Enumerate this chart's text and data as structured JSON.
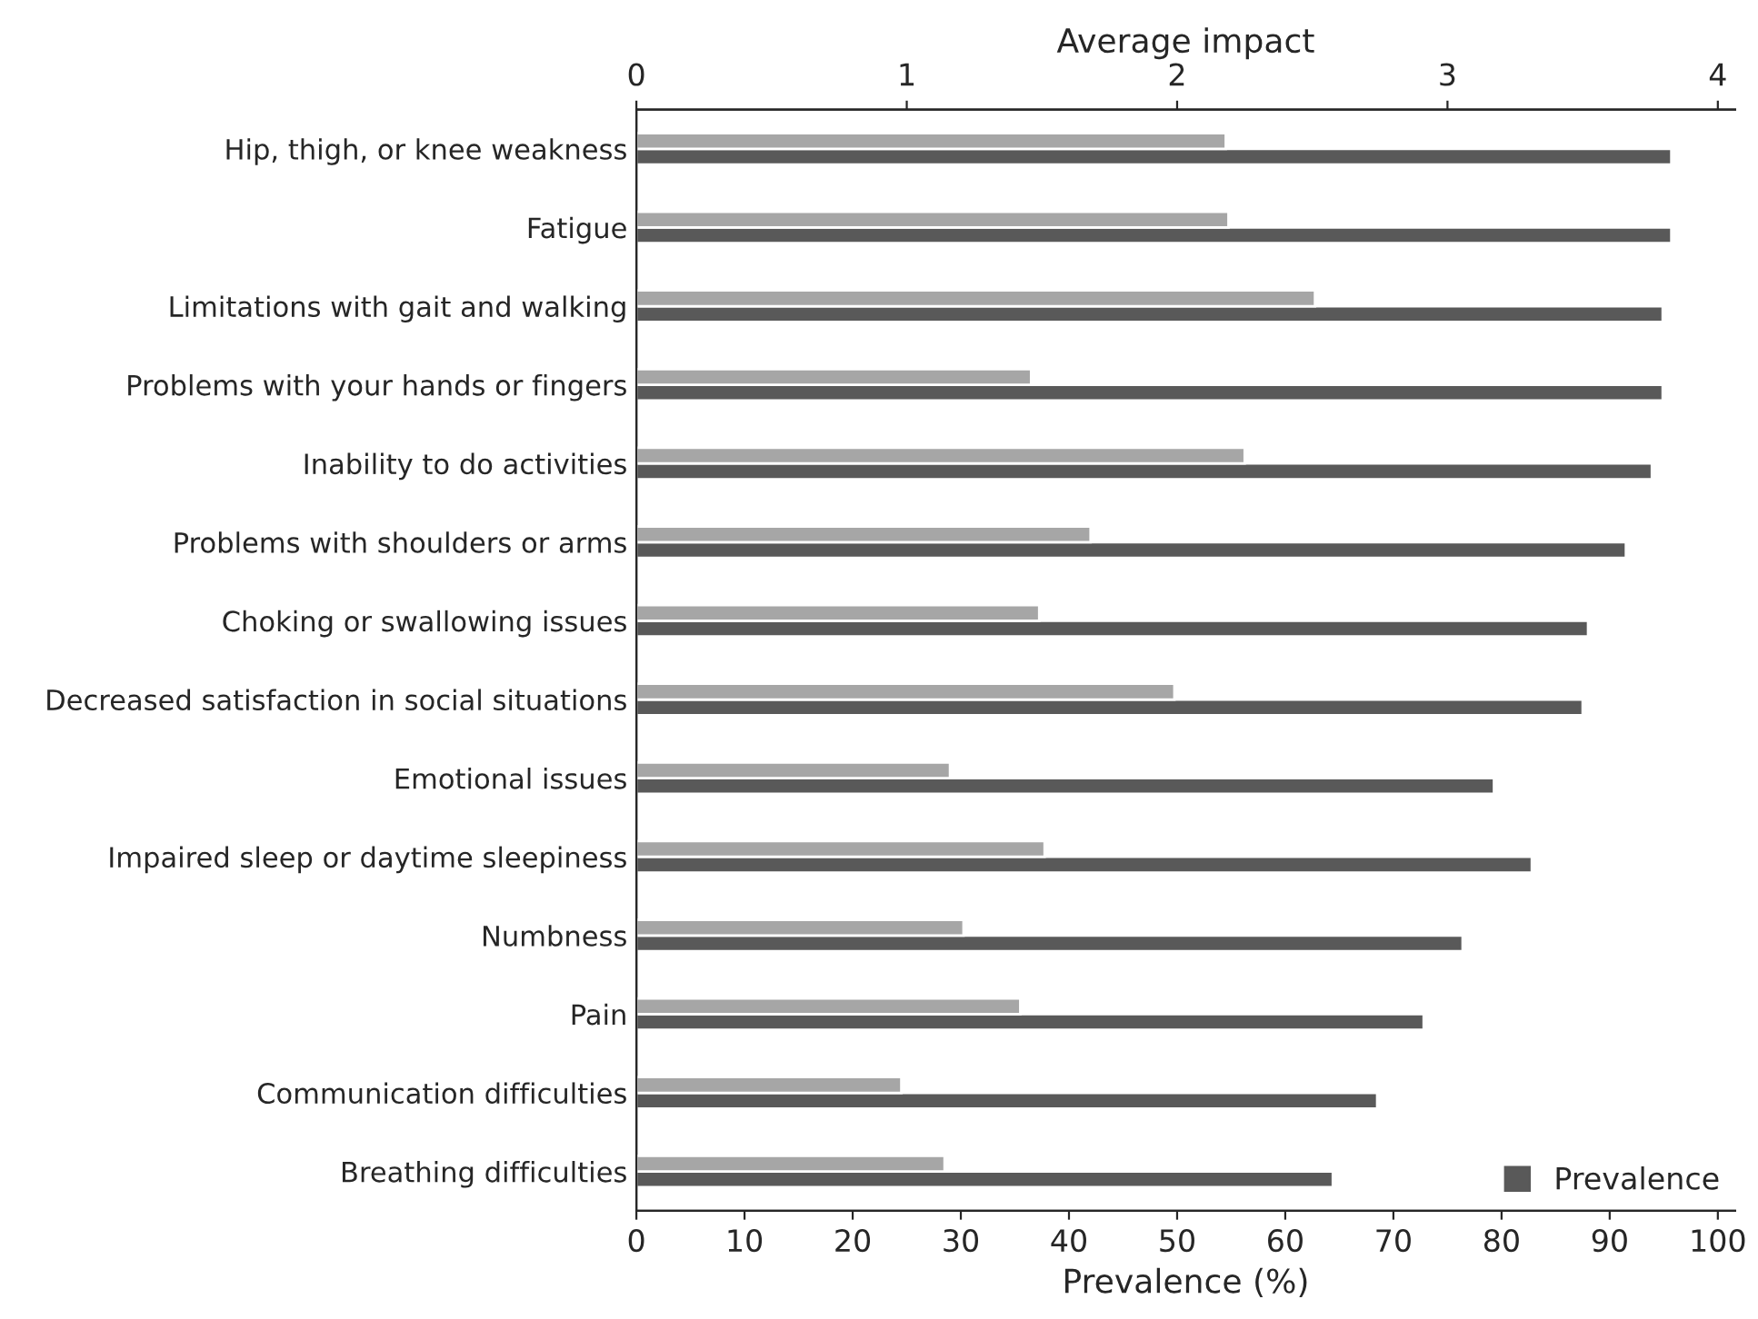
{
  "chart_data": {
    "type": "bar",
    "orientation": "horizontal",
    "xlabel": "Prevalence (%)",
    "x2label": "Average impact",
    "categories": [
      "Hip, thigh, or knee weakness",
      "Fatigue",
      "Limitations with gait and walking",
      "Problems with your hands or fingers",
      "Inability to do activities",
      "Problems with shoulders or arms",
      "Choking or swallowing issues",
      "Decreased satisfaction in social situations",
      "Emotional issues",
      "Impaired sleep or daytime sleepiness",
      "Numbness",
      "Pain",
      "Communication difficulties",
      "Breathing difficulties"
    ],
    "series": [
      {
        "color": "#a6a6a6",
        "axis": "x2",
        "values": [
          2.18,
          2.19,
          2.51,
          1.46,
          2.25,
          1.68,
          1.49,
          1.99,
          1.16,
          1.51,
          1.21,
          1.42,
          0.98,
          1.14
        ]
      },
      {
        "name": "Prevalence",
        "color": "#595959",
        "values": [
          95.7,
          95.7,
          94.9,
          94.9,
          93.9,
          91.5,
          88.0,
          87.5,
          79.3,
          82.8,
          76.4,
          72.8,
          68.5,
          64.4
        ]
      }
    ],
    "xlim": [
      0,
      101.6
    ],
    "xticks": [
      0,
      10,
      20,
      30,
      40,
      50,
      60,
      70,
      80,
      90,
      100
    ],
    "x2lim": [
      0,
      4.064
    ],
    "x2ticks": [
      0,
      1,
      2,
      3,
      4
    ],
    "grid": false,
    "legend": "bottom right"
  }
}
